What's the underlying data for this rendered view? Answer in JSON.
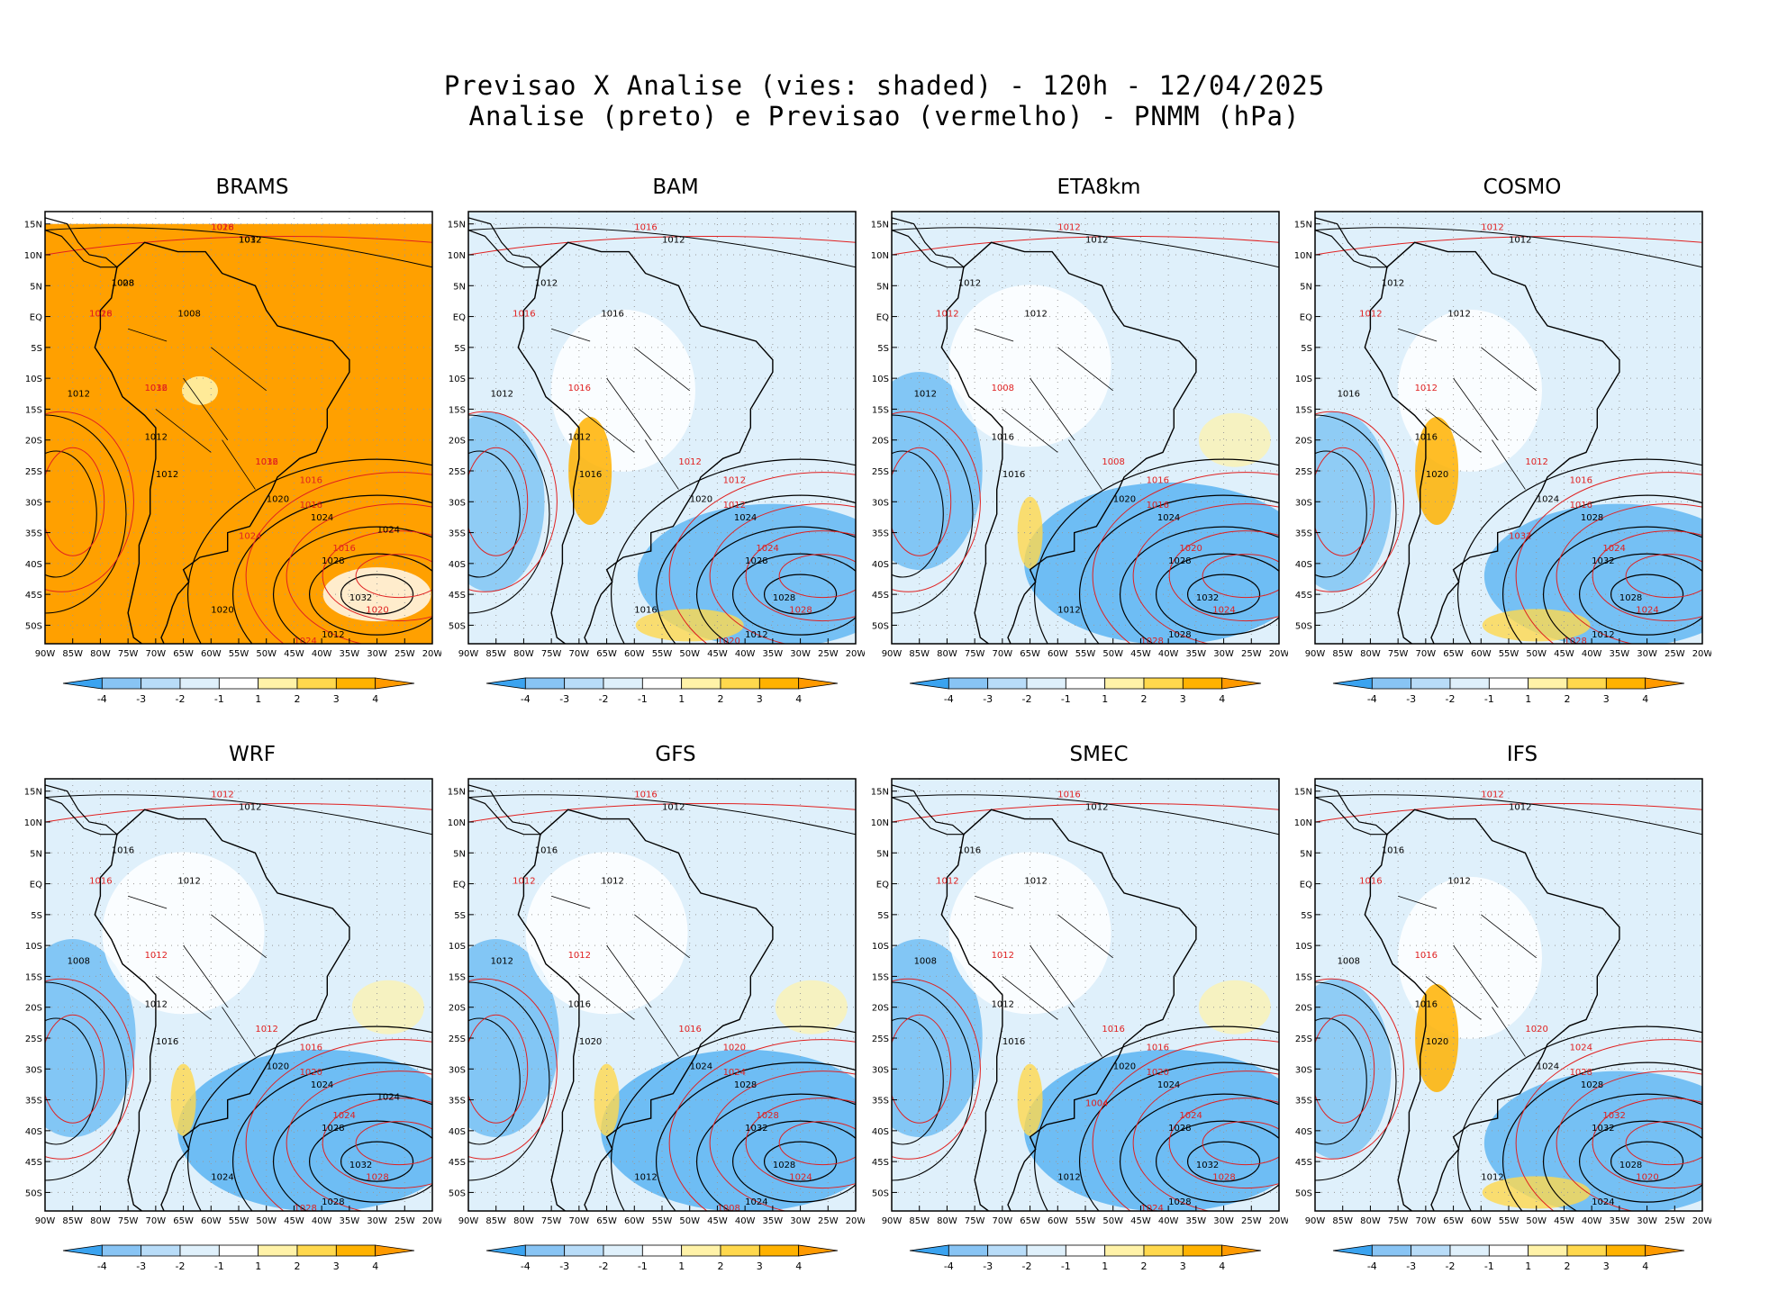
{
  "header": {
    "line1": "Previsao X Analise (vies: shaded) - 120h - 12/04/2025",
    "line2": "Analise (preto) e Previsao (vermelho) - PNMM (hPa)"
  },
  "axes": {
    "lat_labels": [
      "15N",
      "10N",
      "5N",
      "EQ",
      "5S",
      "10S",
      "15S",
      "20S",
      "25S",
      "30S",
      "35S",
      "40S",
      "45S",
      "50S"
    ],
    "lon_labels": [
      "90W",
      "85W",
      "80W",
      "75W",
      "70W",
      "65W",
      "60W",
      "55W",
      "50W",
      "45W",
      "40W",
      "35W",
      "30W",
      "25W",
      "20W"
    ]
  },
  "colorbar": {
    "ticks": [
      "-4",
      "-3",
      "-2",
      "-1",
      "1",
      "2",
      "3",
      "4"
    ],
    "colors": [
      "#3aa3f0",
      "#88c4f4",
      "#b8dcf8",
      "#dff0fb",
      "#ffffff",
      "#fff2a8",
      "#ffd84d",
      "#ffb200",
      "#ff9a00"
    ]
  },
  "colors": {
    "analysis": "#000000",
    "forecast": "#e02020",
    "ocean_bias_negative": "#5ab4f2",
    "bias_positive": "#ffa000"
  },
  "panels": [
    {
      "title": "BRAMS",
      "bias": "positive",
      "black_labels": [
        "1012",
        "1008",
        "1008",
        "1012",
        "1012",
        "1012",
        "1020",
        "1024",
        "1028",
        "1032",
        "1012",
        "1020",
        "1024",
        "1032",
        "1028"
      ],
      "red_labels": [
        "1016",
        "1016",
        "1016",
        "1016",
        "1016",
        "1016",
        "1016",
        "1020",
        "1024",
        "1024",
        "1028",
        "1028",
        "1032",
        "1032"
      ]
    },
    {
      "title": "BAM",
      "bias": "mixed",
      "black_labels": [
        "1012",
        "1012",
        "1016",
        "1012",
        "1012",
        "1016",
        "1020",
        "1024",
        "1028",
        "1028",
        "1012",
        "1016"
      ],
      "red_labels": [
        "1016",
        "1016",
        "1016",
        "1012",
        "1012",
        "1012",
        "1024",
        "1028",
        "1020"
      ]
    },
    {
      "title": "ETA8km",
      "bias": "negative",
      "black_labels": [
        "1012",
        "1012",
        "1012",
        "1012",
        "1016",
        "1016",
        "1020",
        "1024",
        "1028",
        "1032",
        "1028",
        "1012"
      ],
      "red_labels": [
        "1012",
        "1012",
        "1008",
        "1008",
        "1016",
        "1016",
        "1020",
        "1024",
        "1028"
      ]
    },
    {
      "title": "COSMO",
      "bias": "mixed",
      "black_labels": [
        "1012",
        "1012",
        "1012",
        "1016",
        "1016",
        "1020",
        "1024",
        "1028",
        "1032",
        "1028",
        "1012"
      ],
      "red_labels": [
        "1012",
        "1012",
        "1012",
        "1012",
        "1016",
        "1016",
        "1024",
        "1024",
        "1028",
        "1032"
      ]
    },
    {
      "title": "WRF",
      "bias": "negative",
      "black_labels": [
        "1012",
        "1016",
        "1012",
        "1008",
        "1012",
        "1016",
        "1020",
        "1024",
        "1028",
        "1032",
        "1028",
        "1024",
        "1024"
      ],
      "red_labels": [
        "1012",
        "1016",
        "1012",
        "1012",
        "1016",
        "1020",
        "1024",
        "1028",
        "1028"
      ]
    },
    {
      "title": "GFS",
      "bias": "negative",
      "black_labels": [
        "1012",
        "1016",
        "1012",
        "1012",
        "1016",
        "1020",
        "1024",
        "1028",
        "1032",
        "1028",
        "1024",
        "1012"
      ],
      "red_labels": [
        "1016",
        "1012",
        "1012",
        "1016",
        "1020",
        "1024",
        "1028",
        "1024",
        "1008"
      ]
    },
    {
      "title": "SMEC",
      "bias": "negative",
      "black_labels": [
        "1012",
        "1016",
        "1012",
        "1008",
        "1012",
        "1016",
        "1020",
        "1024",
        "1028",
        "1032",
        "1028",
        "1012"
      ],
      "red_labels": [
        "1016",
        "1012",
        "1012",
        "1016",
        "1016",
        "1020",
        "1024",
        "1028",
        "1024",
        "1004"
      ]
    },
    {
      "title": "IFS",
      "bias": "mixed",
      "black_labels": [
        "1012",
        "1016",
        "1012",
        "1008",
        "1016",
        "1020",
        "1024",
        "1028",
        "1032",
        "1028",
        "1024",
        "1012"
      ],
      "red_labels": [
        "1012",
        "1016",
        "1016",
        "1020",
        "1024",
        "1028",
        "1032",
        "1020"
      ]
    }
  ]
}
